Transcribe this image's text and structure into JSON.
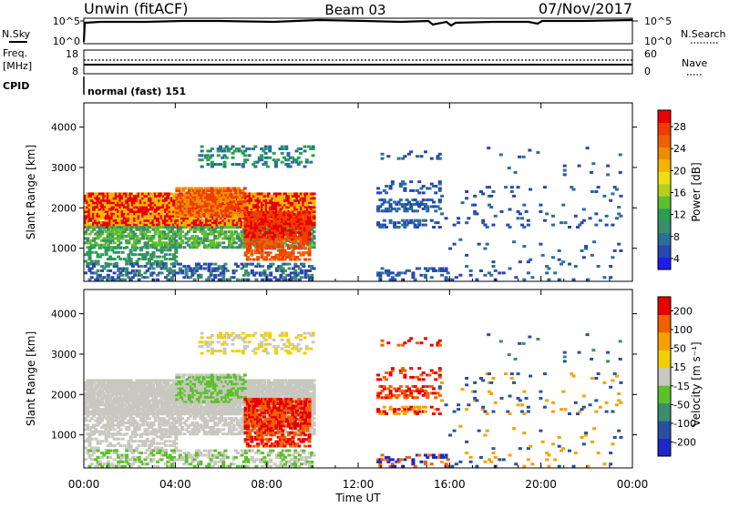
{
  "header": {
    "station": "Unwin (fitACF)",
    "beam": "Beam 03",
    "date": "07/Nov/2017"
  },
  "panel_labels": {
    "nsky": "N.Sky",
    "nsearch": "N.Search",
    "freq_line1": "Freq.",
    "freq_line2": "[MHz]",
    "nave": "Nave",
    "cpid": "CPID",
    "cpid_value": "normal (fast) 151"
  },
  "noise_axis": {
    "left_ticks": [
      "10^5",
      "10^0"
    ],
    "right_ticks": [
      "10^5",
      "10^0"
    ]
  },
  "freq_axis": {
    "left_ticks": [
      "18",
      "8"
    ],
    "right_ticks": [
      "60",
      "0"
    ]
  },
  "colors": {
    "axis": "#000000",
    "grid_bg": "#ffffff"
  },
  "chart_data": [
    {
      "type": "heatmap",
      "name": "power",
      "ylabel": "Slant Range [km]",
      "yticks": [
        "4000",
        "3000",
        "2000",
        "1000"
      ],
      "ytick_values": [
        4000,
        3000,
        2000,
        1000
      ],
      "ylim": [
        180,
        4600
      ],
      "xlim_hours": [
        0,
        24
      ],
      "colorbar": {
        "label": "Power [dB]",
        "ticks": [
          "28",
          "24",
          "20",
          "16",
          "12",
          "8",
          "4"
        ],
        "colors": [
          "#1c1cf0",
          "#2846b4",
          "#2a6e9a",
          "#3c8c6e",
          "#28a050",
          "#5cc02a",
          "#b4d018",
          "#f0e010",
          "#f8b400",
          "#f08c00",
          "#f06000",
          "#f03c00",
          "#e80000"
        ]
      }
    },
    {
      "type": "heatmap",
      "name": "velocity",
      "ylabel": "Slant Range [km]",
      "yticks": [
        "4000",
        "3000",
        "2000",
        "1000"
      ],
      "ytick_values": [
        4000,
        3000,
        2000,
        1000
      ],
      "ylim": [
        180,
        4600
      ],
      "xlim_hours": [
        0,
        24
      ],
      "colorbar": {
        "label": "Velocity [m s⁻¹]",
        "ticks": [
          "200",
          "100",
          "50",
          "15",
          "-15",
          "-50",
          "-100",
          "-200"
        ],
        "colors": [
          "#1c28c8",
          "#2850a0",
          "#3c8c6e",
          "#5cc02a",
          "#c8c8c0",
          "#f0d000",
          "#f8a000",
          "#f06000",
          "#e80000"
        ]
      }
    }
  ],
  "xaxis": {
    "ticks": [
      "00:00",
      "04:00",
      "08:00",
      "12:00",
      "16:00",
      "20:00",
      "00:00"
    ],
    "tick_hours": [
      0,
      4,
      8,
      12,
      16,
      20,
      24
    ],
    "label": "Time UT"
  }
}
